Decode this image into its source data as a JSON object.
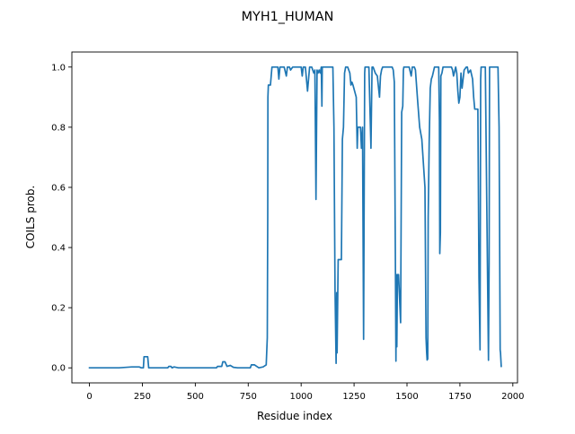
{
  "chart_data": {
    "type": "line",
    "title": "MYH1_HUMAN",
    "xlabel": "Residue index",
    "ylabel": "COILS prob.",
    "xlim": [
      -83,
      2022
    ],
    "ylim": [
      -0.05,
      1.05
    ],
    "xticks": [
      0,
      250,
      500,
      750,
      1000,
      1250,
      1500,
      1750,
      2000
    ],
    "xtick_labels": [
      "0",
      "250",
      "500",
      "750",
      "1000",
      "1250",
      "1500",
      "1750",
      "2000"
    ],
    "yticks": [
      0.0,
      0.2,
      0.4,
      0.6,
      0.8,
      1.0
    ],
    "ytick_labels": [
      "0.0",
      "0.2",
      "0.4",
      "0.6",
      "0.8",
      "1.0"
    ],
    "grid": false,
    "color": "#1f77b4",
    "series": [
      {
        "x": [
          0,
          140,
          200,
          235,
          245,
          255,
          258,
          275,
          280,
          290,
          370,
          375,
          385,
          390,
          400,
          420,
          520,
          600,
          605,
          625,
          630,
          640,
          650,
          665,
          680,
          700,
          760,
          765,
          780,
          790,
          800,
          820,
          835,
          840,
          842,
          843,
          845,
          848,
          855,
          862,
          865,
          870,
          875,
          880,
          885,
          890,
          895,
          900,
          905,
          910,
          915,
          920,
          930,
          935,
          945,
          950,
          960,
          970,
          975,
          985,
          990,
          1000,
          1005,
          1010,
          1015,
          1020,
          1030,
          1040,
          1050,
          1060,
          1065,
          1070,
          1075,
          1080,
          1085,
          1090,
          1095,
          1098,
          1100,
          1110,
          1115,
          1120,
          1140,
          1150,
          1155,
          1160,
          1165,
          1168,
          1170,
          1175,
          1178,
          1180,
          1190,
          1195,
          1200,
          1205,
          1210,
          1220,
          1230,
          1235,
          1240,
          1245,
          1260,
          1265,
          1268,
          1270,
          1275,
          1280,
          1285,
          1290,
          1295,
          1300,
          1302,
          1305,
          1310,
          1320,
          1330,
          1335,
          1340,
          1345,
          1350,
          1360,
          1370,
          1375,
          1380,
          1385,
          1390,
          1400,
          1410,
          1430,
          1435,
          1440,
          1445,
          1448,
          1450,
          1452,
          1455,
          1460,
          1470,
          1475,
          1480,
          1483,
          1485,
          1490,
          1495,
          1500,
          1510,
          1520,
          1525,
          1530,
          1535,
          1540,
          1550,
          1560,
          1570,
          1585,
          1590,
          1593,
          1595,
          1598,
          1600,
          1605,
          1610,
          1615,
          1620,
          1630,
          1640,
          1645,
          1650,
          1653,
          1655,
          1658,
          1660,
          1665,
          1670,
          1680,
          1690,
          1700,
          1710,
          1715,
          1720,
          1730,
          1735,
          1740,
          1745,
          1750,
          1755,
          1760,
          1770,
          1780,
          1785,
          1790,
          1800,
          1810,
          1815,
          1820,
          1825,
          1830,
          1835,
          1840,
          1845,
          1848,
          1850,
          1855,
          1860,
          1870,
          1880,
          1885,
          1888,
          1890,
          1893,
          1895,
          1900,
          1920,
          1930,
          1935,
          1937,
          1940,
          1942,
          1945
        ],
        "y": [
          0.0,
          0.0,
          0.003,
          0.003,
          0.0,
          0.0,
          0.037,
          0.037,
          0.0,
          0.0,
          0.0,
          0.005,
          0.005,
          0.0,
          0.003,
          0.0,
          0.0,
          0.0,
          0.005,
          0.005,
          0.02,
          0.02,
          0.005,
          0.008,
          0.002,
          0.0,
          0.0,
          0.01,
          0.01,
          0.005,
          0.0,
          0.003,
          0.01,
          0.1,
          0.5,
          0.9,
          0.94,
          0.94,
          0.94,
          1.0,
          1.0,
          1.0,
          1.0,
          1.0,
          1.0,
          1.0,
          0.96,
          1.0,
          1.0,
          1.0,
          1.0,
          1.0,
          0.97,
          1.0,
          1.0,
          0.99,
          1.0,
          1.0,
          1.0,
          1.0,
          1.0,
          1.0,
          0.97,
          1.0,
          1.0,
          1.0,
          0.92,
          1.0,
          1.0,
          0.98,
          0.99,
          0.56,
          0.99,
          0.98,
          0.99,
          0.98,
          1.0,
          0.87,
          1.0,
          1.0,
          1.0,
          1.0,
          1.0,
          1.0,
          0.8,
          0.26,
          0.015,
          0.25,
          0.05,
          0.36,
          0.36,
          0.36,
          0.36,
          0.76,
          0.8,
          0.98,
          1.0,
          1.0,
          0.98,
          0.94,
          0.95,
          0.94,
          0.9,
          0.73,
          0.8,
          0.8,
          0.8,
          0.8,
          0.73,
          0.8,
          0.095,
          0.98,
          1.0,
          1.0,
          1.0,
          1.0,
          0.73,
          1.0,
          1.0,
          0.99,
          0.98,
          0.97,
          0.9,
          0.97,
          0.99,
          1.0,
          1.0,
          1.0,
          1.0,
          1.0,
          0.99,
          0.95,
          0.4,
          0.022,
          0.31,
          0.07,
          0.31,
          0.31,
          0.15,
          0.85,
          0.87,
          0.99,
          1.0,
          1.0,
          1.0,
          1.0,
          1.0,
          0.97,
          1.0,
          1.0,
          1.0,
          0.99,
          0.89,
          0.8,
          0.76,
          0.6,
          0.1,
          0.05,
          0.026,
          0.03,
          0.5,
          0.75,
          0.93,
          0.96,
          0.97,
          1.0,
          1.0,
          1.0,
          1.0,
          0.82,
          0.38,
          0.45,
          0.97,
          0.98,
          1.0,
          1.0,
          1.0,
          1.0,
          1.0,
          0.99,
          0.97,
          1.0,
          0.98,
          0.92,
          0.88,
          0.9,
          0.98,
          0.93,
          0.99,
          1.0,
          1.0,
          0.98,
          0.99,
          0.96,
          0.9,
          0.86,
          0.86,
          0.86,
          0.86,
          0.3,
          0.06,
          0.96,
          1.0,
          1.0,
          1.0,
          1.0,
          0.35,
          0.025,
          0.35,
          1.0,
          1.0,
          1.0,
          1.0,
          1.0,
          1.0,
          0.8,
          0.5,
          0.06,
          0.05,
          0.005
        ]
      }
    ]
  }
}
